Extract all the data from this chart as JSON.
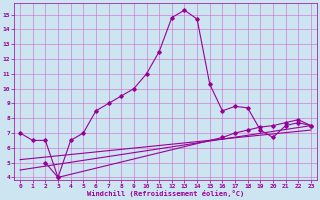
{
  "xlabel": "Windchill (Refroidissement éolien,°C)",
  "bg_color": "#cce5f0",
  "grid_color": "#cc66cc",
  "line_color": "#990099",
  "xlim": [
    -0.5,
    23.5
  ],
  "ylim": [
    3.8,
    15.8
  ],
  "yticks": [
    4,
    5,
    6,
    7,
    8,
    9,
    10,
    11,
    12,
    13,
    14,
    15
  ],
  "xticks": [
    0,
    1,
    2,
    3,
    4,
    5,
    6,
    7,
    8,
    9,
    10,
    11,
    12,
    13,
    14,
    15,
    16,
    17,
    18,
    19,
    20,
    21,
    22,
    23
  ],
  "line1_x": [
    0,
    1,
    2,
    3,
    4,
    5,
    6,
    7,
    8,
    9,
    10,
    11,
    12,
    13,
    14,
    15,
    16,
    17,
    18,
    19,
    20,
    21,
    22,
    23
  ],
  "line1_y": [
    7.0,
    6.5,
    6.5,
    4.0,
    6.5,
    7.0,
    8.5,
    9.0,
    9.5,
    10.0,
    11.0,
    12.5,
    14.8,
    15.3,
    14.7,
    10.3,
    8.5,
    8.8,
    8.7,
    7.2,
    6.7,
    7.5,
    7.7,
    7.5
  ],
  "line2_x": [
    2,
    3,
    16,
    17,
    18,
    19,
    20,
    21,
    22,
    23
  ],
  "line2_y": [
    5.0,
    4.0,
    6.7,
    7.0,
    7.2,
    7.4,
    7.5,
    7.7,
    7.9,
    7.5
  ],
  "line3_x": [
    0,
    23
  ],
  "line3_y": [
    4.5,
    7.5
  ],
  "line4_x": [
    0,
    23
  ],
  "line4_y": [
    5.2,
    7.2
  ]
}
